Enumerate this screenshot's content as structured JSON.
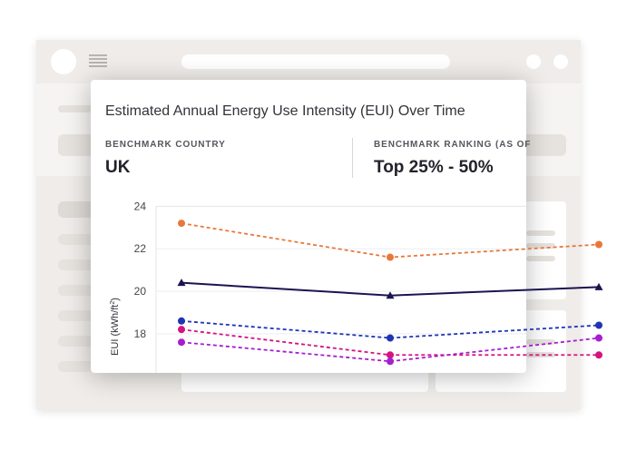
{
  "card": {
    "title": "Estimated Annual Energy Use Intensity (EUI) Over Time",
    "benchmark_country_label": "BENCHMARK COUNTRY",
    "benchmark_country_value": "UK",
    "benchmark_ranking_label": "BENCHMARK RANKING (AS OF",
    "benchmark_ranking_value": "Top 25% - 50%"
  },
  "chart_data": {
    "type": "line",
    "title": "",
    "xlabel": "",
    "ylabel": "EUI (kWh/ft²)",
    "ylabel_base": "EUI (kWh/ft",
    "ylabel_sup": "2",
    "ylabel_end": ")",
    "ylim": [
      16.2,
      24.4
    ],
    "yticks": [
      18,
      20,
      22,
      24
    ],
    "grid": true,
    "x": [
      0,
      1,
      2
    ],
    "series": [
      {
        "name": "orange",
        "color": "#e8783a",
        "dash": true,
        "marker": "circle",
        "values": [
          23.2,
          21.6,
          22.2
        ]
      },
      {
        "name": "navy",
        "color": "#1a1451",
        "dash": false,
        "marker": "triangle",
        "values": [
          20.4,
          19.8,
          20.2
        ]
      },
      {
        "name": "blue",
        "color": "#1f34b5",
        "dash": true,
        "marker": "circle",
        "values": [
          18.6,
          17.8,
          18.4
        ]
      },
      {
        "name": "magenta",
        "color": "#d4137e",
        "dash": true,
        "marker": "circle",
        "values": [
          18.2,
          17.0,
          17.0
        ]
      },
      {
        "name": "purple",
        "color": "#a61ed0",
        "dash": true,
        "marker": "circle",
        "values": [
          17.6,
          16.7,
          17.8
        ]
      }
    ]
  }
}
